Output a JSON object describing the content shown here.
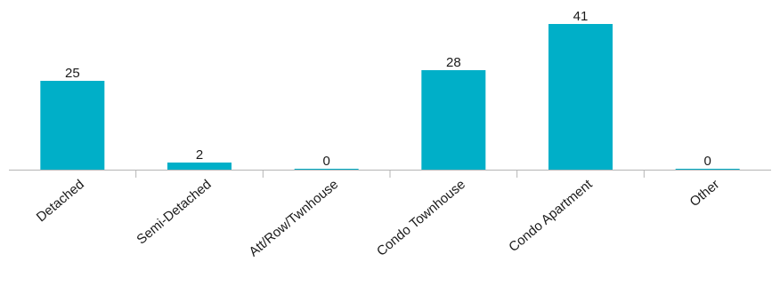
{
  "chart_data": {
    "type": "bar",
    "categories": [
      "Detached",
      "Semi-Detached",
      "Att/Row/Twnhouse",
      "Condo Townhouse",
      "Condo Apartment",
      "Other"
    ],
    "values": [
      25,
      2,
      0,
      28,
      41,
      0
    ],
    "title": "",
    "xlabel": "",
    "ylabel": "",
    "ylim": [
      0,
      41
    ],
    "grid": false,
    "legend": "none",
    "bar_color": "#00AFC8",
    "label_rotation": -40
  }
}
